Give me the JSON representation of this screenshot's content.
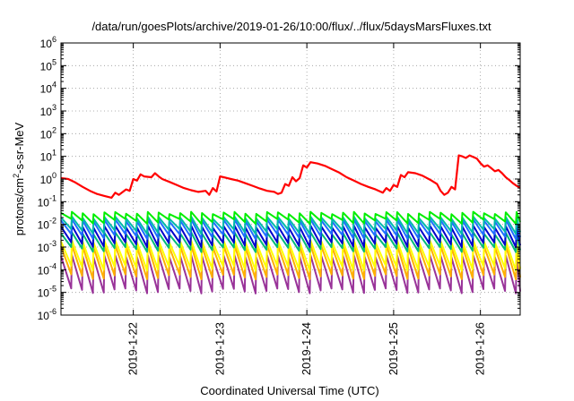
{
  "chart_data": {
    "type": "line",
    "title": "/data/run/goesPlots/archive/2019-01-26/10:00/flux/../flux/5daysMarsFluxes.txt",
    "xlabel": "Coordinated Universal Time (UTC)",
    "ylabel": {
      "prefix": "protons/cm",
      "sup": "2",
      "suffix": "-s-sr-MeV"
    },
    "y_scale": "log",
    "ylim": [
      1e-06,
      1000000.0
    ],
    "y_ticks": [
      {
        "value": 1e-06,
        "base": "10",
        "exp": "-6"
      },
      {
        "value": 1e-05,
        "base": "10",
        "exp": "-5"
      },
      {
        "value": 0.0001,
        "base": "10",
        "exp": "-4"
      },
      {
        "value": 0.001,
        "base": "10",
        "exp": "-3"
      },
      {
        "value": 0.01,
        "base": "10",
        "exp": "-2"
      },
      {
        "value": 0.1,
        "base": "10",
        "exp": "-1"
      },
      {
        "value": 1,
        "base": "10",
        "exp": "0"
      },
      {
        "value": 10,
        "base": "10",
        "exp": "1"
      },
      {
        "value": 100,
        "base": "10",
        "exp": "2"
      },
      {
        "value": 1000.0,
        "base": "10",
        "exp": "3"
      },
      {
        "value": 10000.0,
        "base": "10",
        "exp": "4"
      },
      {
        "value": 100000.0,
        "base": "10",
        "exp": "5"
      },
      {
        "value": 1000000.0,
        "base": "10",
        "exp": "6"
      }
    ],
    "xlim": [
      "2019-01-21T04:00",
      "2019-01-26T11:00"
    ],
    "x_ticks": [
      {
        "value": "2019-01-22T00:00",
        "label": "2019-1-22"
      },
      {
        "value": "2019-01-23T00:00",
        "label": "2019-1-23"
      },
      {
        "value": "2019-01-24T00:00",
        "label": "2019-1-24"
      },
      {
        "value": "2019-01-25T00:00",
        "label": "2019-1-25"
      },
      {
        "value": "2019-01-26T00:00",
        "label": "2019-1-26"
      }
    ],
    "grid": true,
    "legend": "none",
    "sawtooth_period_hours": 3,
    "series": [
      {
        "color": "#ff0000",
        "style": "jagged",
        "points": [
          [
            "2019-01-21T04:00",
            1.1
          ],
          [
            "2019-01-21T06:00",
            1.0
          ],
          [
            "2019-01-21T08:00",
            0.7
          ],
          [
            "2019-01-21T10:00",
            0.45
          ],
          [
            "2019-01-21T12:00",
            0.3
          ],
          [
            "2019-01-21T14:00",
            0.22
          ],
          [
            "2019-01-21T16:00",
            0.18
          ],
          [
            "2019-01-21T18:00",
            0.15
          ],
          [
            "2019-01-21T19:00",
            0.25
          ],
          [
            "2019-01-21T20:00",
            0.2
          ],
          [
            "2019-01-21T22:00",
            0.35
          ],
          [
            "2019-01-21T23:00",
            0.3
          ],
          [
            "2019-01-22T00:00",
            1.0
          ],
          [
            "2019-01-22T01:00",
            0.85
          ],
          [
            "2019-01-22T02:00",
            1.6
          ],
          [
            "2019-01-22T03:00",
            1.3
          ],
          [
            "2019-01-22T05:00",
            1.2
          ],
          [
            "2019-01-22T06:00",
            1.8
          ],
          [
            "2019-01-22T07:00",
            1.3
          ],
          [
            "2019-01-22T08:00",
            1.0
          ],
          [
            "2019-01-22T10:00",
            0.75
          ],
          [
            "2019-01-22T12:00",
            0.55
          ],
          [
            "2019-01-22T14:00",
            0.4
          ],
          [
            "2019-01-22T16:00",
            0.32
          ],
          [
            "2019-01-22T18:00",
            0.27
          ],
          [
            "2019-01-22T20:00",
            0.3
          ],
          [
            "2019-01-22T21:00",
            0.2
          ],
          [
            "2019-01-22T22:00",
            0.4
          ],
          [
            "2019-01-22T23:00",
            0.28
          ],
          [
            "2019-01-23T00:00",
            1.3
          ],
          [
            "2019-01-23T01:00",
            1.2
          ],
          [
            "2019-01-23T03:00",
            1.0
          ],
          [
            "2019-01-23T05:00",
            0.85
          ],
          [
            "2019-01-23T07:00",
            0.65
          ],
          [
            "2019-01-23T09:00",
            0.5
          ],
          [
            "2019-01-23T11:00",
            0.38
          ],
          [
            "2019-01-23T13:00",
            0.3
          ],
          [
            "2019-01-23T15:00",
            0.27
          ],
          [
            "2019-01-23T16:00",
            0.22
          ],
          [
            "2019-01-23T17:00",
            0.25
          ],
          [
            "2019-01-23T18:00",
            0.6
          ],
          [
            "2019-01-23T19:00",
            0.5
          ],
          [
            "2019-01-23T20:00",
            1.2
          ],
          [
            "2019-01-23T21:00",
            0.8
          ],
          [
            "2019-01-23T22:00",
            1.1
          ],
          [
            "2019-01-23T23:00",
            4.0
          ],
          [
            "2019-01-24T00:00",
            3.2
          ],
          [
            "2019-01-24T01:00",
            5.5
          ],
          [
            "2019-01-24T03:00",
            4.8
          ],
          [
            "2019-01-24T05:00",
            3.8
          ],
          [
            "2019-01-24T07:00",
            2.7
          ],
          [
            "2019-01-24T09:00",
            1.9
          ],
          [
            "2019-01-24T11:00",
            1.2
          ],
          [
            "2019-01-24T13:00",
            0.85
          ],
          [
            "2019-01-24T15:00",
            0.6
          ],
          [
            "2019-01-24T17:00",
            0.45
          ],
          [
            "2019-01-24T19:00",
            0.35
          ],
          [
            "2019-01-24T21:00",
            0.25
          ],
          [
            "2019-01-24T22:00",
            0.4
          ],
          [
            "2019-01-24T23:00",
            0.3
          ],
          [
            "2019-01-25T00:00",
            0.55
          ],
          [
            "2019-01-25T01:00",
            0.45
          ],
          [
            "2019-01-25T02:00",
            1.5
          ],
          [
            "2019-01-25T03:00",
            1.2
          ],
          [
            "2019-01-25T04:00",
            2.0
          ],
          [
            "2019-01-25T06:00",
            1.8
          ],
          [
            "2019-01-25T08:00",
            1.4
          ],
          [
            "2019-01-25T10:00",
            0.95
          ],
          [
            "2019-01-25T12:00",
            0.6
          ],
          [
            "2019-01-25T13:00",
            0.3
          ],
          [
            "2019-01-25T14:00",
            0.2
          ],
          [
            "2019-01-25T15:00",
            0.25
          ],
          [
            "2019-01-25T16:00",
            0.45
          ],
          [
            "2019-01-25T17:00",
            0.35
          ],
          [
            "2019-01-25T18:00",
            11.0
          ],
          [
            "2019-01-25T19:00",
            10.0
          ],
          [
            "2019-01-25T20:00",
            8.5
          ],
          [
            "2019-01-25T21:00",
            11.0
          ],
          [
            "2019-01-25T23:00",
            8.0
          ],
          [
            "2019-01-26T00:00",
            5.0
          ],
          [
            "2019-01-26T01:00",
            3.5
          ],
          [
            "2019-01-26T02:00",
            4.0
          ],
          [
            "2019-01-26T03:00",
            3.0
          ],
          [
            "2019-01-26T04:00",
            2.2
          ],
          [
            "2019-01-26T05:00",
            2.5
          ],
          [
            "2019-01-26T06:00",
            1.8
          ],
          [
            "2019-01-26T07:00",
            1.2
          ],
          [
            "2019-01-26T08:00",
            0.9
          ],
          [
            "2019-01-26T09:00",
            0.65
          ],
          [
            "2019-01-26T10:00",
            0.5
          ],
          [
            "2019-01-26T11:00",
            0.4
          ]
        ]
      },
      {
        "color": "#00ee00",
        "style": "sawtooth",
        "peak": 0.032,
        "trough": 0.014
      },
      {
        "color": "#00bbaa",
        "style": "sawtooth",
        "peak": 0.02,
        "trough": 0.005
      },
      {
        "color": "#1e6fff",
        "style": "sawtooth",
        "peak": 0.015,
        "trough": 0.003
      },
      {
        "color": "#0000cc",
        "style": "sawtooth",
        "peak": 0.008,
        "trough": 0.0013
      },
      {
        "color": "#00bb77",
        "style": "sawtooth",
        "peak": 0.004,
        "trough": 0.0008
      },
      {
        "color": "#ffff00",
        "style": "sawtooth",
        "peak": 0.0018,
        "trough": 0.00012
      },
      {
        "color": "#ffb000",
        "style": "sawtooth",
        "peak": 0.0011,
        "trough": 5e-05
      },
      {
        "color": "#993399",
        "style": "sawtooth",
        "peak": 0.0004,
        "trough": 1.2e-05
      }
    ]
  }
}
